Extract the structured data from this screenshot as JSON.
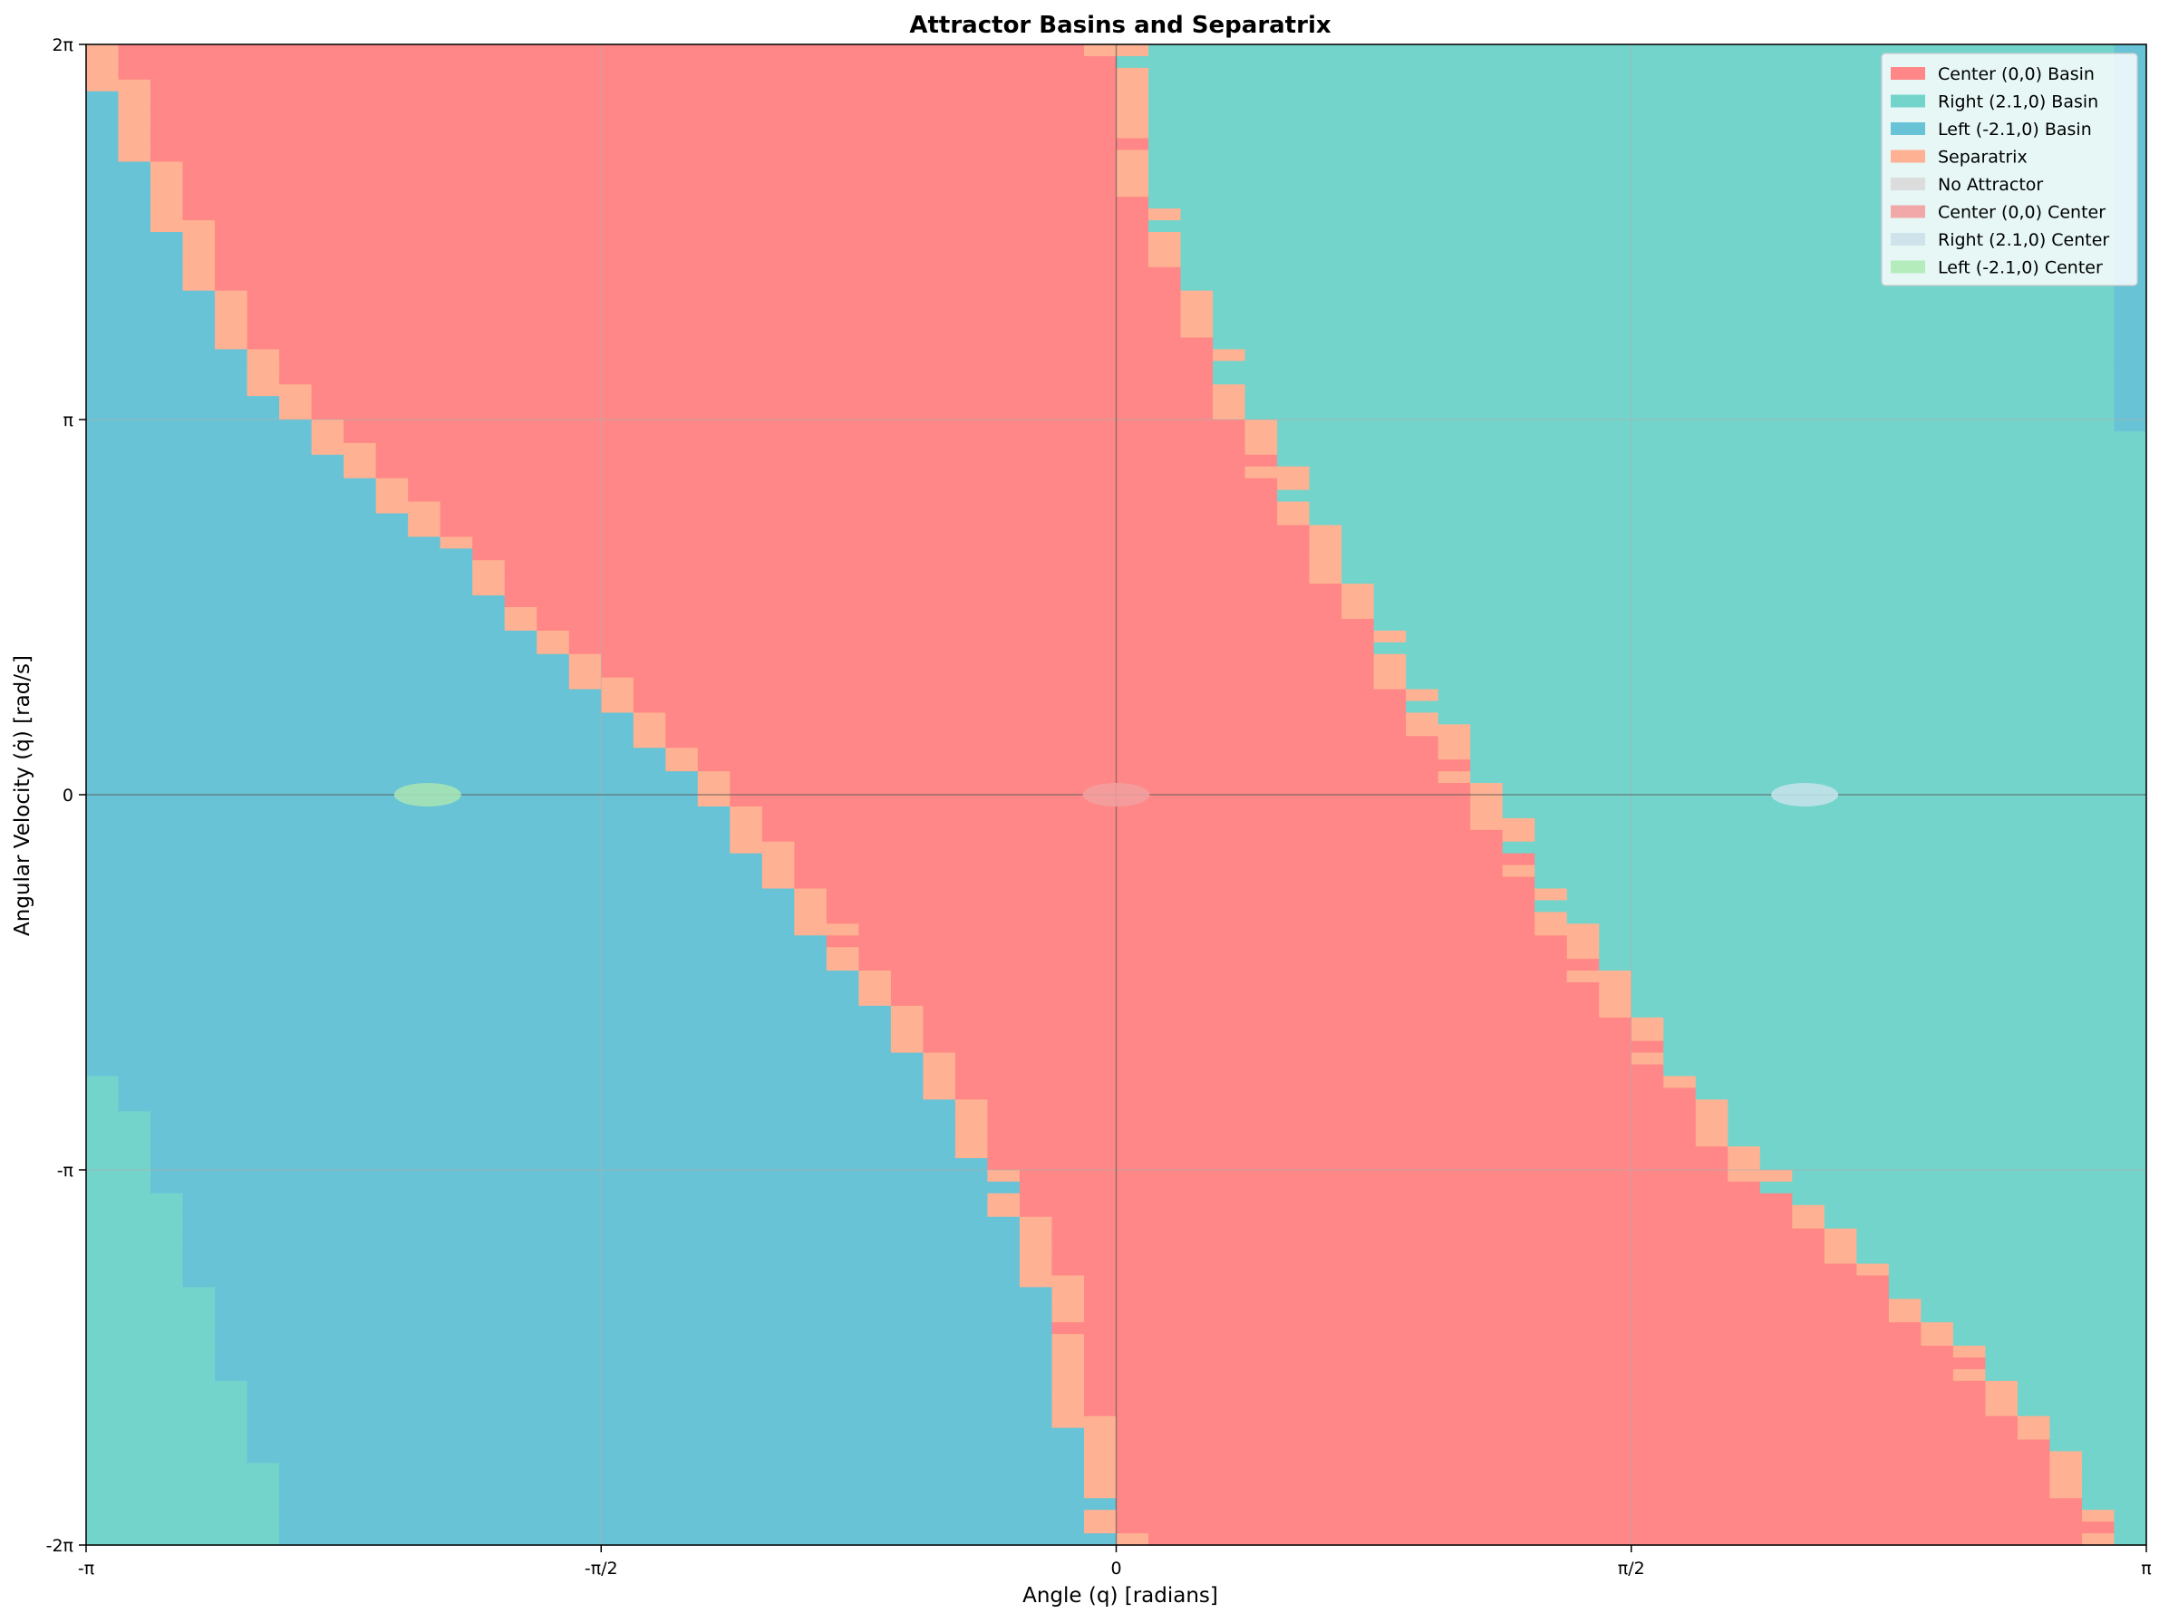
{
  "chart_data": {
    "type": "heatmap",
    "title": "Attractor Basins and Separatrix",
    "xlabel": "Angle (q) [radians]",
    "ylabel": "Angular Velocity (q̇) [rad/s]",
    "xlim": [
      -3.14159,
      3.14159
    ],
    "ylim": [
      -6.28319,
      6.28319
    ],
    "x_ticks": [
      {
        "value": -3.14159,
        "label": "-π"
      },
      {
        "value": -1.5708,
        "label": "-π/2"
      },
      {
        "value": 0,
        "label": "0"
      },
      {
        "value": 1.5708,
        "label": "π/2"
      },
      {
        "value": 3.14159,
        "label": "π"
      }
    ],
    "y_ticks": [
      {
        "value": -6.28319,
        "label": "-2π"
      },
      {
        "value": -3.14159,
        "label": "-π"
      },
      {
        "value": 0,
        "label": "0"
      },
      {
        "value": 3.14159,
        "label": "π"
      },
      {
        "value": 6.28319,
        "label": "2π"
      }
    ],
    "grid": "faint",
    "legend_position": "top-right",
    "colors": {
      "center_basin": "#ff8787",
      "right_basin": "#73d4cc",
      "left_basin": "#68c3d6",
      "separatrix": "#ffb293",
      "no_attractor": "#dcdcdc",
      "center_marker": "#f2a0a0",
      "right_marker": "#c5e3ea",
      "left_marker": "#a9e5b4"
    },
    "legend": [
      {
        "label": "Center (0,0) Basin",
        "color": "#ff8787"
      },
      {
        "label": "Right (2.1,0) Basin",
        "color": "#73d4cc"
      },
      {
        "label": "Left (-2.1,0) Basin",
        "color": "#68c3d6"
      },
      {
        "label": "Separatrix",
        "color": "#ffb293"
      },
      {
        "label": "No Attractor",
        "color": "#dcdcdc"
      },
      {
        "label": "Center (0,0) Center",
        "color": "#f2a8a8"
      },
      {
        "label": "Right (2.1,0) Center",
        "color": "#cfe4ea"
      },
      {
        "label": "Left (-2.1,0) Center",
        "color": "#b4ecbc"
      }
    ],
    "centers": [
      {
        "x": -2.1,
        "y": 0,
        "color": "#a9e5b4"
      },
      {
        "x": 0,
        "y": 0,
        "color": "#f2a0a0"
      },
      {
        "x": 2.1,
        "y": 0,
        "color": "#c5e3ea"
      }
    ],
    "grid_size": {
      "nx": 64,
      "ny": 128
    },
    "boundaries": {
      "upper": [
        [
          6.28,
          -3.1
        ],
        [
          4.5,
          -2.8
        ],
        [
          3.5,
          -2.6
        ],
        [
          2.5,
          -2.2
        ],
        [
          1.0,
          -1.6
        ],
        [
          0.0,
          -1.2
        ],
        [
          -1.0,
          -0.92
        ],
        [
          -2.0,
          -0.62
        ],
        [
          -3.0,
          -0.4
        ],
        [
          -4.0,
          -0.2
        ],
        [
          -5.0,
          -0.12
        ],
        [
          -6.28,
          0.0
        ]
      ],
      "lower": [
        [
          6.28,
          0.0
        ],
        [
          5.0,
          0.08
        ],
        [
          4.0,
          0.25
        ],
        [
          3.0,
          0.42
        ],
        [
          2.0,
          0.65
        ],
        [
          1.0,
          0.86
        ],
        [
          0.0,
          1.12
        ],
        [
          -1.0,
          1.34
        ],
        [
          -2.0,
          1.6
        ],
        [
          -3.0,
          1.88
        ],
        [
          -4.0,
          2.3
        ],
        [
          -5.0,
          2.7
        ],
        [
          -6.28,
          3.05
        ]
      ],
      "right_band_left_edge": [
        [
          6.28,
          3.05
        ],
        [
          3.5,
          3.05
        ],
        [
          2.0,
          3.1
        ],
        [
          0.0,
          3.14
        ]
      ],
      "left_band_right_edge": [
        [
          0.0,
          -3.12
        ],
        [
          -1.5,
          -3.1
        ],
        [
          -2.5,
          -3.02
        ],
        [
          -3.5,
          -2.88
        ],
        [
          -4.5,
          -2.75
        ],
        [
          -5.5,
          -2.62
        ],
        [
          -6.28,
          -2.5
        ]
      ]
    }
  }
}
